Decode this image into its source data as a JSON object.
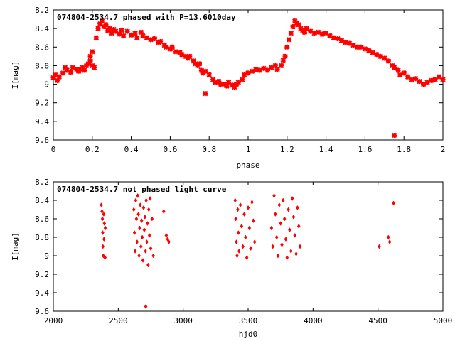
{
  "chart_data": [
    {
      "type": "scatter",
      "title": "074804-2534.7 phased with P=13.6010day",
      "xlabel": "phase",
      "ylabel": "I[mag]",
      "xlim": [
        0,
        2
      ],
      "ylim": [
        8.2,
        9.6
      ],
      "y_inverted": true,
      "grid": false,
      "xticks": [
        "0",
        "0.2",
        "0.4",
        "0.6",
        "0.8",
        "1",
        "1.2",
        "1.4",
        "1.6",
        "1.8",
        "2"
      ],
      "yticks": [
        "8.2",
        "8.4",
        "8.6",
        "8.8",
        "9",
        "9.2",
        "9.4",
        "9.6"
      ],
      "marker_color": "#ff0000",
      "series": [
        {
          "points": [
            [
              0.0,
              8.93
            ],
            [
              0.01,
              8.9
            ],
            [
              0.02,
              8.96
            ],
            [
              0.03,
              8.92
            ],
            [
              0.05,
              8.88
            ],
            [
              0.06,
              8.82
            ],
            [
              0.07,
              8.85
            ],
            [
              0.09,
              8.87
            ],
            [
              0.1,
              8.82
            ],
            [
              0.12,
              8.84
            ],
            [
              0.13,
              8.86
            ],
            [
              0.14,
              8.84
            ],
            [
              0.15,
              8.82
            ],
            [
              0.16,
              8.85
            ],
            [
              0.17,
              8.8
            ],
            [
              0.18,
              8.78
            ],
            [
              0.19,
              8.75
            ],
            [
              0.19,
              8.7
            ],
            [
              0.2,
              8.8
            ],
            [
              0.21,
              8.82
            ],
            [
              0.2,
              8.65
            ],
            [
              0.22,
              8.5
            ],
            [
              0.23,
              8.4
            ],
            [
              0.24,
              8.35
            ],
            [
              0.25,
              8.32
            ],
            [
              0.26,
              8.38
            ],
            [
              0.27,
              8.36
            ],
            [
              0.28,
              8.42
            ],
            [
              0.29,
              8.4
            ],
            [
              0.3,
              8.45
            ],
            [
              0.31,
              8.41
            ],
            [
              0.32,
              8.43
            ],
            [
              0.34,
              8.46
            ],
            [
              0.35,
              8.42
            ],
            [
              0.36,
              8.48
            ],
            [
              0.38,
              8.43
            ],
            [
              0.4,
              8.47
            ],
            [
              0.42,
              8.45
            ],
            [
              0.43,
              8.5
            ],
            [
              0.45,
              8.44
            ],
            [
              0.46,
              8.48
            ],
            [
              0.48,
              8.5
            ],
            [
              0.5,
              8.52
            ],
            [
              0.52,
              8.51
            ],
            [
              0.54,
              8.55
            ],
            [
              0.55,
              8.54
            ],
            [
              0.57,
              8.58
            ],
            [
              0.58,
              8.6
            ],
            [
              0.6,
              8.62
            ],
            [
              0.61,
              8.6
            ],
            [
              0.63,
              8.65
            ],
            [
              0.65,
              8.66
            ],
            [
              0.66,
              8.68
            ],
            [
              0.68,
              8.7
            ],
            [
              0.69,
              8.72
            ],
            [
              0.7,
              8.7
            ],
            [
              0.72,
              8.75
            ],
            [
              0.73,
              8.78
            ],
            [
              0.74,
              8.8
            ],
            [
              0.75,
              8.78
            ],
            [
              0.76,
              8.85
            ],
            [
              0.77,
              8.88
            ],
            [
              0.78,
              8.86
            ],
            [
              0.78,
              9.1
            ],
            [
              0.8,
              8.9
            ],
            [
              0.82,
              8.95
            ],
            [
              0.83,
              8.98
            ],
            [
              0.85,
              8.97
            ],
            [
              0.86,
              9.0
            ],
            [
              0.88,
              9.0
            ],
            [
              0.89,
              9.02
            ],
            [
              0.9,
              8.98
            ],
            [
              0.92,
              9.01
            ],
            [
              0.93,
              9.03
            ],
            [
              0.94,
              9.0
            ],
            [
              0.95,
              8.98
            ],
            [
              0.97,
              8.95
            ],
            [
              0.98,
              8.9
            ],
            [
              1.0,
              8.88
            ],
            [
              1.02,
              8.86
            ],
            [
              1.04,
              8.84
            ],
            [
              1.06,
              8.85
            ],
            [
              1.08,
              8.83
            ],
            [
              1.1,
              8.85
            ],
            [
              1.12,
              8.82
            ],
            [
              1.14,
              8.8
            ],
            [
              1.15,
              8.84
            ],
            [
              1.17,
              8.8
            ],
            [
              1.18,
              8.74
            ],
            [
              1.19,
              8.7
            ],
            [
              1.2,
              8.6
            ],
            [
              1.21,
              8.52
            ],
            [
              1.22,
              8.45
            ],
            [
              1.23,
              8.38
            ],
            [
              1.24,
              8.32
            ],
            [
              1.25,
              8.34
            ],
            [
              1.26,
              8.36
            ],
            [
              1.27,
              8.4
            ],
            [
              1.28,
              8.42
            ],
            [
              1.29,
              8.44
            ],
            [
              1.3,
              8.4
            ],
            [
              1.32,
              8.43
            ],
            [
              1.34,
              8.45
            ],
            [
              1.36,
              8.44
            ],
            [
              1.38,
              8.46
            ],
            [
              1.4,
              8.45
            ],
            [
              1.42,
              8.48
            ],
            [
              1.44,
              8.5
            ],
            [
              1.46,
              8.51
            ],
            [
              1.48,
              8.53
            ],
            [
              1.5,
              8.55
            ],
            [
              1.52,
              8.56
            ],
            [
              1.54,
              8.58
            ],
            [
              1.56,
              8.6
            ],
            [
              1.58,
              8.6
            ],
            [
              1.6,
              8.62
            ],
            [
              1.62,
              8.64
            ],
            [
              1.64,
              8.66
            ],
            [
              1.66,
              8.68
            ],
            [
              1.68,
              8.7
            ],
            [
              1.7,
              8.72
            ],
            [
              1.72,
              8.75
            ],
            [
              1.74,
              8.8
            ],
            [
              1.75,
              8.82
            ],
            [
              1.75,
              9.55
            ],
            [
              1.77,
              8.85
            ],
            [
              1.78,
              8.9
            ],
            [
              1.8,
              8.88
            ],
            [
              1.82,
              8.92
            ],
            [
              1.84,
              8.95
            ],
            [
              1.86,
              8.94
            ],
            [
              1.88,
              8.97
            ],
            [
              1.9,
              9.0
            ],
            [
              1.92,
              8.98
            ],
            [
              1.94,
              8.96
            ],
            [
              1.96,
              8.95
            ],
            [
              1.98,
              8.92
            ],
            [
              2.0,
              8.95
            ]
          ]
        }
      ]
    },
    {
      "type": "scatter",
      "title": "074804-2534.7 not phased light curve",
      "xlabel": "hjd0",
      "ylabel": "I[mag]",
      "xlim": [
        2000,
        5000
      ],
      "ylim": [
        8.2,
        9.6
      ],
      "y_inverted": true,
      "grid": false,
      "xticks": [
        "2000",
        "2500",
        "3000",
        "3500",
        "4000",
        "4500",
        "5000"
      ],
      "yticks": [
        "8.2",
        "8.4",
        "8.6",
        "8.8",
        "9",
        "9.2",
        "9.4",
        "9.6"
      ],
      "marker_color": "#ff0000",
      "series": [
        {
          "points": [
            [
              2370,
              8.45
            ],
            [
              2375,
              8.52
            ],
            [
              2378,
              8.6
            ],
            [
              2380,
              8.75
            ],
            [
              2382,
              8.9
            ],
            [
              2385,
              9.0
            ],
            [
              2388,
              8.55
            ],
            [
              2390,
              8.82
            ],
            [
              2393,
              8.65
            ],
            [
              2398,
              9.02
            ],
            [
              2400,
              8.7
            ],
            [
              2620,
              8.5
            ],
            [
              2625,
              8.75
            ],
            [
              2630,
              8.95
            ],
            [
              2635,
              8.4
            ],
            [
              2640,
              8.6
            ],
            [
              2645,
              8.85
            ],
            [
              2650,
              8.35
            ],
            [
              2655,
              8.55
            ],
            [
              2660,
              9.0
            ],
            [
              2665,
              8.7
            ],
            [
              2670,
              8.45
            ],
            [
              2675,
              8.9
            ],
            [
              2680,
              8.62
            ],
            [
              2685,
              8.8
            ],
            [
              2690,
              9.05
            ],
            [
              2695,
              8.48
            ],
            [
              2700,
              8.72
            ],
            [
              2705,
              8.58
            ],
            [
              2710,
              8.95
            ],
            [
              2712,
              9.55
            ],
            [
              2715,
              8.4
            ],
            [
              2720,
              8.85
            ],
            [
              2725,
              8.65
            ],
            [
              2730,
              9.1
            ],
            [
              2735,
              8.5
            ],
            [
              2740,
              8.78
            ],
            [
              2745,
              8.38
            ],
            [
              2750,
              8.92
            ],
            [
              2760,
              8.6
            ],
            [
              2770,
              9.0
            ],
            [
              2850,
              8.52
            ],
            [
              2870,
              8.78
            ],
            [
              2880,
              8.82
            ],
            [
              2890,
              8.85
            ],
            [
              3400,
              8.4
            ],
            [
              3405,
              8.6
            ],
            [
              3410,
              8.85
            ],
            [
              3415,
              9.0
            ],
            [
              3420,
              8.5
            ],
            [
              3425,
              8.75
            ],
            [
              3430,
              8.95
            ],
            [
              3440,
              8.45
            ],
            [
              3450,
              8.68
            ],
            [
              3460,
              8.9
            ],
            [
              3470,
              8.55
            ],
            [
              3480,
              8.8
            ],
            [
              3490,
              9.02
            ],
            [
              3500,
              8.48
            ],
            [
              3510,
              8.7
            ],
            [
              3520,
              8.92
            ],
            [
              3530,
              8.42
            ],
            [
              3540,
              8.62
            ],
            [
              3550,
              8.85
            ],
            [
              3680,
              8.7
            ],
            [
              3690,
              8.9
            ],
            [
              3700,
              8.35
            ],
            [
              3710,
              8.55
            ],
            [
              3720,
              8.8
            ],
            [
              3730,
              9.0
            ],
            [
              3740,
              8.45
            ],
            [
              3750,
              8.65
            ],
            [
              3760,
              8.88
            ],
            [
              3770,
              8.4
            ],
            [
              3780,
              8.6
            ],
            [
              3790,
              8.82
            ],
            [
              3800,
              9.02
            ],
            [
              3810,
              8.5
            ],
            [
              3820,
              8.72
            ],
            [
              3830,
              8.95
            ],
            [
              3840,
              8.38
            ],
            [
              3850,
              8.58
            ],
            [
              3860,
              8.78
            ],
            [
              3870,
              8.98
            ],
            [
              3880,
              8.48
            ],
            [
              3890,
              8.68
            ],
            [
              3900,
              8.9
            ],
            [
              4510,
              8.9
            ],
            [
              4580,
              8.8
            ],
            [
              4590,
              8.85
            ],
            [
              4620,
              8.43
            ]
          ]
        }
      ]
    }
  ]
}
